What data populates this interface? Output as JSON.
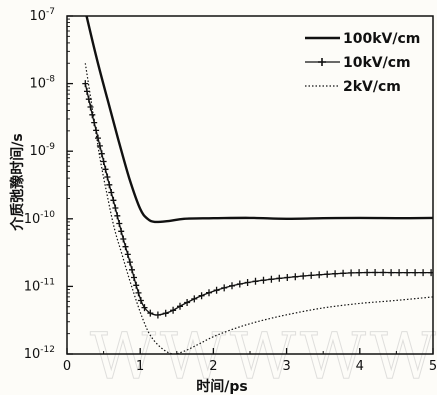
{
  "chart_data": {
    "type": "line",
    "xlabel": "时间/ps",
    "ylabel": "介质弛豫时间/s",
    "xlim": [
      0,
      5
    ],
    "ylim": [
      1e-12,
      1e-07
    ],
    "yscale": "log",
    "x_ticks": [
      "0",
      "1",
      "2",
      "3",
      "4",
      "5"
    ],
    "y_ticks": [
      {
        "base": "10",
        "exp": "-12"
      },
      {
        "base": "10",
        "exp": "-11"
      },
      {
        "base": "10",
        "exp": "-10"
      },
      {
        "base": "10",
        "exp": "-9"
      },
      {
        "base": "10",
        "exp": "-8"
      },
      {
        "base": "10",
        "exp": "-7"
      }
    ],
    "grid": false,
    "legend_position": "top-right",
    "series": [
      {
        "name": "100kV/cm",
        "style": "solid-thick",
        "x": [
          0.25,
          0.4,
          0.55,
          0.7,
          0.85,
          1.0,
          1.1,
          1.2,
          1.4,
          1.6,
          2.0,
          2.5,
          3.0,
          3.5,
          4.0,
          4.5,
          5.0
        ],
        "y": [
          1.2e-07,
          2.5e-08,
          6e-09,
          1.5e-09,
          4e-10,
          1.4e-10,
          1e-10,
          9e-11,
          9.3e-11,
          1e-10,
          1.02e-10,
          1.03e-10,
          1e-10,
          1.02e-10,
          1.03e-10,
          1.02e-10,
          1.03e-10
        ]
      },
      {
        "name": "10kV/cm",
        "style": "solid-markers",
        "x": [
          0.25,
          0.35,
          0.45,
          0.55,
          0.65,
          0.75,
          0.85,
          0.95,
          1.05,
          1.2,
          1.4,
          1.6,
          1.8,
          2.0,
          2.3,
          2.6,
          3.0,
          3.5,
          4.0,
          4.5,
          5.0
        ],
        "y": [
          1e-08,
          3.3e-09,
          1.2e-09,
          4.2e-10,
          1.6e-10,
          6e-11,
          2.5e-11,
          1e-11,
          5e-12,
          3.8e-12,
          4.2e-12,
          5.5e-12,
          7e-12,
          8.5e-12,
          1.05e-11,
          1.2e-11,
          1.35e-11,
          1.5e-11,
          1.6e-11,
          1.6e-11,
          1.6e-11
        ]
      },
      {
        "name": "2kV/cm",
        "style": "dotted",
        "x": [
          0.25,
          0.35,
          0.45,
          0.55,
          0.65,
          0.75,
          0.85,
          0.95,
          1.05,
          1.15,
          1.3,
          1.45,
          1.6,
          1.8,
          2.0,
          2.3,
          2.6,
          3.0,
          3.5,
          4.0,
          4.5,
          5.0
        ],
        "y": [
          2e-08,
          4e-09,
          8e-10,
          2.2e-10,
          7e-11,
          3e-11,
          1.3e-11,
          6e-12,
          3e-12,
          1.8e-12,
          1.2e-12,
          1e-12,
          1.1e-12,
          1.4e-12,
          1.8e-12,
          2.4e-12,
          3e-12,
          3.8e-12,
          4.8e-12,
          5.6e-12,
          6.2e-12,
          7e-12
        ]
      }
    ]
  }
}
